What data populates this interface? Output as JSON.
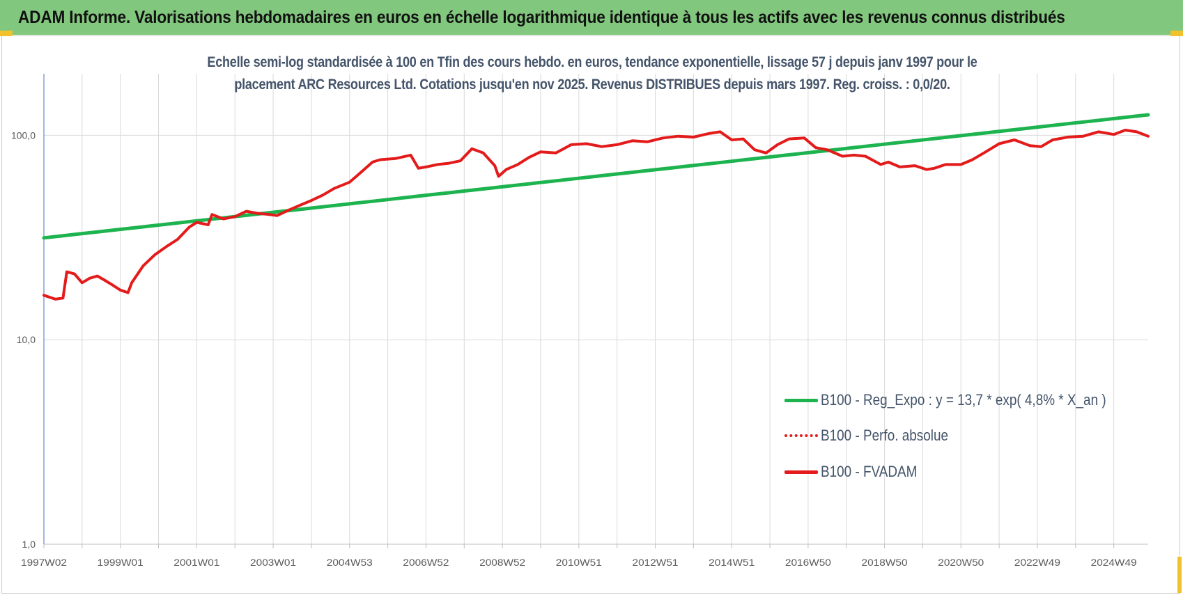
{
  "header": {
    "title": "ADAM Informe. Valorisations hebdomadaires en euros en échelle logarithmique identique à tous les actifs avec les revenus connus distribués"
  },
  "colors": {
    "header_bg": "#82c77e",
    "reg_line": "#1db34f",
    "fvadam_line": "#e31b1b",
    "title_text": "#44546a",
    "grid": "#d9d9d9",
    "corner_accent": "#f2c12e"
  },
  "chart_data": {
    "type": "line",
    "title_lines": [
      "Echelle semi-log standardisée à 100 en Tfin des cours hebdo. en euros, tendance exponentielle, lissage 57 j depuis janv 1997 pour le",
      "placement ARC Resources Ltd. Cotations jusqu'en nov 2025. Revenus DISTRIBUES depuis mars 1997. Reg. croiss. : 0,0/20."
    ],
    "y_scale": "log",
    "ylim": [
      1,
      200
    ],
    "y_ticks": [
      {
        "value": 1,
        "label": "1,0"
      },
      {
        "value": 10,
        "label": "10,0"
      },
      {
        "value": 100,
        "label": "100,0"
      }
    ],
    "xlim": [
      1997.0,
      2025.9
    ],
    "x_ticks": [
      {
        "x": 1997.0,
        "label": "1997W02"
      },
      {
        "x": 1999.0,
        "label": "1999W01"
      },
      {
        "x": 2001.0,
        "label": "2001W01"
      },
      {
        "x": 2003.0,
        "label": "2003W01"
      },
      {
        "x": 2005.0,
        "label": "2004W53"
      },
      {
        "x": 2007.0,
        "label": "2006W52"
      },
      {
        "x": 2009.0,
        "label": "2008W52"
      },
      {
        "x": 2011.0,
        "label": "2010W51"
      },
      {
        "x": 2013.0,
        "label": "2012W51"
      },
      {
        "x": 2015.0,
        "label": "2014W51"
      },
      {
        "x": 2017.0,
        "label": "2016W50"
      },
      {
        "x": 2019.0,
        "label": "2018W50"
      },
      {
        "x": 2021.0,
        "label": "2020W50"
      },
      {
        "x": 2023.0,
        "label": "2022W49"
      },
      {
        "x": 2025.0,
        "label": "2024W49"
      }
    ],
    "grid": true,
    "legend_position": "right",
    "series": [
      {
        "name": "B100 - Reg_Expo : y = 13,7 * exp( 4,8% *  X_an )",
        "style": "solid",
        "color": "#1db34f",
        "x": [
          1997.0,
          2025.9
        ],
        "y": [
          31.5,
          126
        ]
      },
      {
        "name": "B100 - Perfo. absolue",
        "style": "dotted",
        "color": "#e31b1b",
        "x": [],
        "y": []
      },
      {
        "name": "B100 - FVADAM",
        "style": "solid",
        "color": "#e31b1b",
        "x": [
          1997.0,
          1997.3,
          1997.5,
          1997.6,
          1997.8,
          1998.0,
          1998.2,
          1998.4,
          1998.6,
          1998.8,
          1999.0,
          1999.2,
          1999.3,
          1999.6,
          1999.9,
          2000.2,
          2000.5,
          2000.8,
          2001.0,
          2001.3,
          2001.4,
          2001.7,
          2002.0,
          2002.3,
          2002.6,
          2002.9,
          2003.1,
          2003.4,
          2003.7,
          2004.0,
          2004.3,
          2004.6,
          2005.0,
          2005.3,
          2005.6,
          2005.8,
          2006.2,
          2006.6,
          2006.8,
          2007.0,
          2007.3,
          2007.6,
          2007.9,
          2008.2,
          2008.5,
          2008.8,
          2008.9,
          2009.1,
          2009.4,
          2009.7,
          2010.0,
          2010.4,
          2010.8,
          2011.2,
          2011.6,
          2012.0,
          2012.4,
          2012.8,
          2013.2,
          2013.6,
          2014.0,
          2014.4,
          2014.7,
          2015.0,
          2015.3,
          2015.6,
          2015.9,
          2016.2,
          2016.5,
          2016.9,
          2017.2,
          2017.5,
          2017.9,
          2018.2,
          2018.5,
          2018.9,
          2019.1,
          2019.4,
          2019.8,
          2020.1,
          2020.3,
          2020.6,
          2021.0,
          2021.3,
          2021.6,
          2022.0,
          2022.4,
          2022.8,
          2023.1,
          2023.4,
          2023.8,
          2024.2,
          2024.6,
          2025.0,
          2025.3,
          2025.6,
          2025.9
        ],
        "y": [
          16.5,
          15.8,
          16.0,
          21.5,
          21.0,
          19.0,
          20.0,
          20.5,
          19.5,
          18.5,
          17.5,
          17.0,
          19.0,
          23.0,
          26.0,
          28.5,
          31.0,
          35.5,
          37.5,
          36.5,
          41.0,
          39.0,
          40.0,
          42.5,
          41.5,
          41.0,
          40.5,
          43.0,
          45.5,
          48.0,
          51.0,
          55.0,
          59.0,
          66.0,
          74.0,
          76.0,
          77.0,
          80.0,
          69.0,
          70.0,
          72.0,
          73.0,
          75.0,
          86.0,
          82.0,
          71.0,
          63.0,
          68.0,
          72.0,
          78.0,
          83.0,
          82.0,
          90.0,
          91.0,
          88.0,
          90.0,
          94.0,
          93.0,
          97.0,
          99.0,
          98.0,
          102.0,
          104.0,
          95.0,
          96.0,
          85.0,
          82.0,
          90.0,
          96.0,
          97.0,
          87.0,
          85.0,
          79.0,
          80.0,
          79.0,
          72.0,
          74.0,
          70.0,
          71.0,
          68.0,
          69.0,
          72.0,
          72.0,
          76.0,
          82.0,
          91.0,
          95.0,
          89.0,
          88.0,
          95.0,
          98.0,
          99.0,
          104.0,
          101.0,
          106.0,
          104.0,
          99.0
        ]
      }
    ]
  }
}
